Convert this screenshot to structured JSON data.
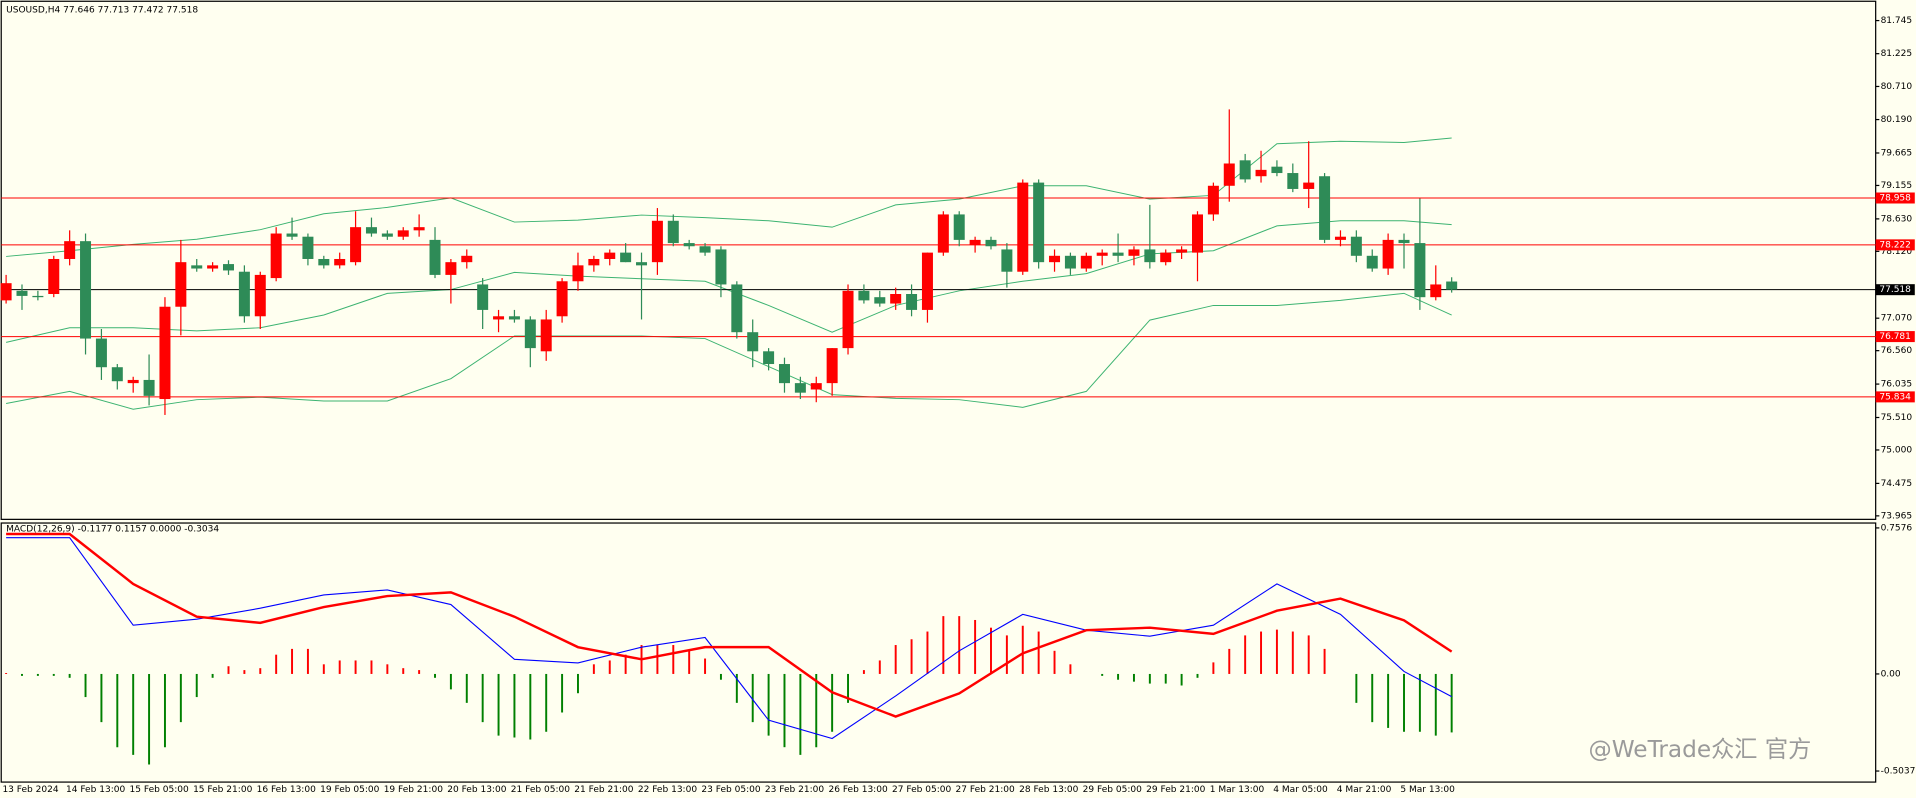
{
  "chart_data": [
    {
      "type": "candlestick",
      "title": "USOUSD,H4  77.646 77.713 77.472 77.518",
      "categories": [
        "13 Feb 2024",
        null,
        null,
        null,
        "14 Feb 13:00",
        null,
        null,
        null,
        "15 Feb 05:00",
        null,
        null,
        null,
        "15 Feb 21:00",
        null,
        null,
        null,
        "16 Feb 13:00",
        null,
        null,
        null,
        "19 Feb 05:00",
        null,
        null,
        null,
        "19 Feb 21:00",
        null,
        null,
        null,
        "20 Feb 13:00",
        null,
        null,
        null,
        "21 Feb 05:00",
        null,
        null,
        null,
        "21 Feb 21:00",
        null,
        null,
        null,
        "22 Feb 13:00",
        null,
        null,
        null,
        "23 Feb 05:00",
        null,
        null,
        null,
        "23 Feb 21:00",
        null,
        null,
        null,
        "26 Feb 13:00",
        null,
        null,
        null,
        "27 Feb 05:00",
        null,
        null,
        null,
        "27 Feb 21:00",
        null,
        null,
        null,
        "28 Feb 13:00",
        null,
        null,
        null,
        "29 Feb 05:00",
        null,
        null,
        null,
        "29 Feb 21:00",
        null,
        null,
        null,
        "1 Mar 13:00",
        null,
        null,
        null,
        "4 Mar 05:00",
        null,
        null,
        null,
        "4 Mar 21:00",
        null,
        null,
        null,
        "5 Mar 13:00",
        null,
        null,
        null
      ],
      "ohlc": [
        [
          77.35,
          77.75,
          77.3,
          77.62
        ],
        [
          77.5,
          77.6,
          77.2,
          77.42
        ],
        [
          77.42,
          77.5,
          77.35,
          77.4
        ],
        [
          77.45,
          78.05,
          77.4,
          78.0
        ],
        [
          78.0,
          78.45,
          77.9,
          78.28
        ],
        [
          78.28,
          78.4,
          76.5,
          76.75
        ],
        [
          76.75,
          76.9,
          76.1,
          76.3
        ],
        [
          76.3,
          76.35,
          75.95,
          76.08
        ],
        [
          76.05,
          76.15,
          75.9,
          76.1
        ],
        [
          76.1,
          76.5,
          75.7,
          75.85
        ],
        [
          75.8,
          77.4,
          75.55,
          77.25
        ],
        [
          77.25,
          78.3,
          76.8,
          77.95
        ],
        [
          77.9,
          78.0,
          77.8,
          77.85
        ],
        [
          77.85,
          77.95,
          77.8,
          77.9
        ],
        [
          77.92,
          77.98,
          77.75,
          77.82
        ],
        [
          77.8,
          77.9,
          77.0,
          77.1
        ],
        [
          77.1,
          77.8,
          76.9,
          77.75
        ],
        [
          77.7,
          78.5,
          77.65,
          78.4
        ],
        [
          78.4,
          78.65,
          78.3,
          78.35
        ],
        [
          78.35,
          78.4,
          77.9,
          78.0
        ],
        [
          78.0,
          78.05,
          77.85,
          77.9
        ],
        [
          77.9,
          78.1,
          77.85,
          78.0
        ],
        [
          77.95,
          78.75,
          77.9,
          78.5
        ],
        [
          78.5,
          78.65,
          78.35,
          78.4
        ],
        [
          78.4,
          78.45,
          78.3,
          78.35
        ],
        [
          78.35,
          78.5,
          78.3,
          78.45
        ],
        [
          78.45,
          78.7,
          78.35,
          78.5
        ],
        [
          78.3,
          78.5,
          77.7,
          77.75
        ],
        [
          77.75,
          78.0,
          77.3,
          77.95
        ],
        [
          77.95,
          78.15,
          77.85,
          78.05
        ],
        [
          77.6,
          77.7,
          76.9,
          77.2
        ],
        [
          77.05,
          77.2,
          76.85,
          77.1
        ],
        [
          77.1,
          77.2,
          77.0,
          77.05
        ],
        [
          77.05,
          77.1,
          76.3,
          76.6
        ],
        [
          76.55,
          77.2,
          76.4,
          77.05
        ],
        [
          77.1,
          77.7,
          77.0,
          77.65
        ],
        [
          77.65,
          78.1,
          77.5,
          77.9
        ],
        [
          77.9,
          78.05,
          77.8,
          78.0
        ],
        [
          78.0,
          78.15,
          77.9,
          78.1
        ],
        [
          78.1,
          78.25,
          77.95,
          77.95
        ],
        [
          77.95,
          78.1,
          77.05,
          77.9
        ],
        [
          77.95,
          78.8,
          77.75,
          78.6
        ],
        [
          78.6,
          78.7,
          78.2,
          78.25
        ],
        [
          78.25,
          78.3,
          78.15,
          78.2
        ],
        [
          78.2,
          78.25,
          78.05,
          78.1
        ],
        [
          78.15,
          78.2,
          77.4,
          77.6
        ],
        [
          77.6,
          77.65,
          76.75,
          76.85
        ],
        [
          76.85,
          77.05,
          76.3,
          76.55
        ],
        [
          76.55,
          76.6,
          76.25,
          76.35
        ],
        [
          76.35,
          76.45,
          75.9,
          76.05
        ],
        [
          76.05,
          76.15,
          75.8,
          75.9
        ],
        [
          75.95,
          76.15,
          75.75,
          76.05
        ],
        [
          76.05,
          76.6,
          75.85,
          76.6
        ],
        [
          76.6,
          77.6,
          76.5,
          77.5
        ],
        [
          77.5,
          77.6,
          77.3,
          77.35
        ],
        [
          77.4,
          77.5,
          77.25,
          77.3
        ],
        [
          77.3,
          77.55,
          77.2,
          77.45
        ],
        [
          77.45,
          77.6,
          77.1,
          77.2
        ],
        [
          77.2,
          78.1,
          77.0,
          78.1
        ],
        [
          78.1,
          78.75,
          78.05,
          78.7
        ],
        [
          78.7,
          78.75,
          78.2,
          78.3
        ],
        [
          78.22,
          78.35,
          78.1,
          78.3
        ],
        [
          78.3,
          78.35,
          78.15,
          78.2
        ],
        [
          78.15,
          78.25,
          77.55,
          77.8
        ],
        [
          77.8,
          79.25,
          77.75,
          79.2
        ],
        [
          79.2,
          79.25,
          77.85,
          77.95
        ],
        [
          77.95,
          78.15,
          77.8,
          78.05
        ],
        [
          78.05,
          78.1,
          77.75,
          77.85
        ],
        [
          77.85,
          78.1,
          77.8,
          78.05
        ],
        [
          78.05,
          78.15,
          77.9,
          78.1
        ],
        [
          78.1,
          78.4,
          77.95,
          78.05
        ],
        [
          78.05,
          78.2,
          77.9,
          78.15
        ],
        [
          78.15,
          78.85,
          77.85,
          77.95
        ],
        [
          77.95,
          78.15,
          77.9,
          78.1
        ],
        [
          78.1,
          78.2,
          78.0,
          78.15
        ],
        [
          78.1,
          78.75,
          77.65,
          78.7
        ],
        [
          78.7,
          79.2,
          78.6,
          79.15
        ],
        [
          79.15,
          80.35,
          78.9,
          79.5
        ],
        [
          79.55,
          79.65,
          79.2,
          79.25
        ],
        [
          79.3,
          79.7,
          79.2,
          79.4
        ],
        [
          79.45,
          79.55,
          79.3,
          79.35
        ],
        [
          79.35,
          79.5,
          79.05,
          79.1
        ],
        [
          79.1,
          79.85,
          78.8,
          79.2
        ],
        [
          79.3,
          79.35,
          78.25,
          78.3
        ],
        [
          78.3,
          78.45,
          78.2,
          78.35
        ],
        [
          78.35,
          78.45,
          77.95,
          78.05
        ],
        [
          78.05,
          78.15,
          77.8,
          77.85
        ],
        [
          77.85,
          78.4,
          77.75,
          78.3
        ],
        [
          78.3,
          78.4,
          77.85,
          78.25
        ],
        [
          78.25,
          78.95,
          77.2,
          77.4
        ],
        [
          77.4,
          77.9,
          77.35,
          77.6
        ],
        [
          77.646,
          77.713,
          77.472,
          77.518
        ]
      ],
      "up_color": "#ff0000",
      "down_color": "#2e8b57",
      "ylim": [
        73.91,
        82.01
      ],
      "yticks": [
        81.745,
        81.225,
        {
          "value": 80.71,
          "label": "80.710"
        },
        {
          "value": 80.19,
          "label": "80.190"
        },
        79.665,
        79.155,
        {
          "value": 78.63,
          "label": "78.630"
        },
        {
          "value": 78.12,
          "label": "78.120"
        },
        {
          "value": 77.07,
          "label": "77.070"
        },
        {
          "value": 76.56,
          "label": "76.560"
        },
        76.035,
        {
          "value": 75.51,
          "label": "75.510"
        },
        {
          "value": 75.0,
          "label": "75.000"
        },
        74.475,
        73.965
      ],
      "bands": {
        "color": "#3cb371",
        "x": [
          0,
          4,
          8,
          12,
          16,
          20,
          24,
          28,
          32,
          36,
          40,
          44,
          48,
          52,
          56,
          60,
          64,
          68,
          72,
          76,
          80,
          84,
          88,
          91
        ],
        "upper": [
          78.04,
          78.13,
          78.23,
          78.31,
          78.46,
          78.71,
          78.81,
          78.96,
          78.58,
          78.61,
          78.69,
          78.65,
          78.6,
          78.5,
          78.85,
          78.94,
          79.15,
          79.15,
          78.94,
          79.0,
          79.81,
          79.85,
          79.83,
          79.9
        ],
        "middle": [
          76.69,
          76.92,
          76.92,
          76.87,
          76.92,
          77.12,
          77.46,
          77.52,
          77.79,
          77.73,
          77.69,
          77.65,
          77.27,
          76.85,
          77.27,
          77.5,
          77.65,
          77.77,
          78.08,
          78.13,
          78.52,
          78.6,
          78.6,
          78.54
        ],
        "lower": [
          75.73,
          75.92,
          75.64,
          75.79,
          75.83,
          75.77,
          75.77,
          76.12,
          76.79,
          76.79,
          76.79,
          76.75,
          76.31,
          75.87,
          75.81,
          75.79,
          75.67,
          75.92,
          77.04,
          77.27,
          77.27,
          77.35,
          77.46,
          77.12
        ]
      },
      "hlines": [
        {
          "value": 78.958,
          "color": "#ff0000"
        },
        {
          "value": 78.222,
          "color": "#ff0000"
        },
        {
          "value": 77.518,
          "color": "#000000"
        },
        {
          "value": 76.781,
          "color": "#ff0000"
        },
        {
          "value": 75.834,
          "color": "#ff0000"
        }
      ]
    },
    {
      "type": "macd",
      "title": "MACD(12,26,9) -0.1177 0.1157 0.0000 -0.3034",
      "histogram": [
        0.005,
        -0.01,
        -0.01,
        -0.01,
        -0.02,
        -0.12,
        -0.25,
        -0.38,
        -0.42,
        -0.47,
        -0.38,
        -0.25,
        -0.12,
        -0.02,
        0.04,
        0.02,
        0.03,
        0.1,
        0.13,
        0.13,
        0.05,
        0.07,
        0.07,
        0.07,
        0.05,
        0.03,
        0.02,
        -0.02,
        -0.08,
        -0.15,
        -0.25,
        -0.32,
        -0.33,
        -0.34,
        -0.3,
        -0.2,
        -0.1,
        0.05,
        0.07,
        0.1,
        0.15,
        0.15,
        0.15,
        0.12,
        0.08,
        -0.03,
        -0.15,
        -0.25,
        -0.32,
        -0.38,
        -0.42,
        -0.38,
        -0.3,
        -0.15,
        0.02,
        0.07,
        0.15,
        0.18,
        0.22,
        0.3,
        0.3,
        0.28,
        0.24,
        0.2,
        0.25,
        0.22,
        0.12,
        0.05,
        0.0,
        -0.01,
        -0.03,
        -0.04,
        -0.05,
        -0.05,
        -0.06,
        -0.02,
        0.06,
        0.13,
        0.2,
        0.22,
        0.23,
        0.22,
        0.2,
        0.13,
        0.0,
        -0.15,
        -0.25,
        -0.28,
        -0.3,
        -0.3,
        -0.32,
        -0.3034
      ],
      "pos_color": "#ff0000",
      "neg_color": "#008000",
      "x": [
        0,
        4,
        8,
        12,
        16,
        20,
        24,
        28,
        32,
        36,
        40,
        44,
        48,
        52,
        56,
        60,
        64,
        68,
        72,
        76,
        80,
        84,
        88,
        91
      ],
      "series": [
        {
          "color": "#0000ff",
          "values": [
            0.707,
            0.707,
            0.253,
            0.284,
            0.341,
            0.41,
            0.436,
            0.36,
            0.076,
            0.057,
            0.139,
            0.189,
            -0.24,
            -0.335,
            -0.114,
            0.12,
            0.309,
            0.227,
            0.196,
            0.253,
            0.467,
            0.309,
            0.013,
            -0.1177
          ]
        },
        {
          "color": "#ff0000",
          "values": [
            0.726,
            0.726,
            0.467,
            0.297,
            0.265,
            0.347,
            0.404,
            0.423,
            0.297,
            0.139,
            0.076,
            0.139,
            0.139,
            -0.095,
            -0.221,
            -0.101,
            0.107,
            0.227,
            0.24,
            0.208,
            0.328,
            0.391,
            0.278,
            0.1157
          ]
        }
      ],
      "ylim": [
        -0.561,
        0.783
      ],
      "yticks": [
        0.7576,
        {
          "value": 0,
          "label": "0.00"
        },
        -0.5037
      ]
    }
  ],
  "watermark": "@WeTrade众汇 官方"
}
